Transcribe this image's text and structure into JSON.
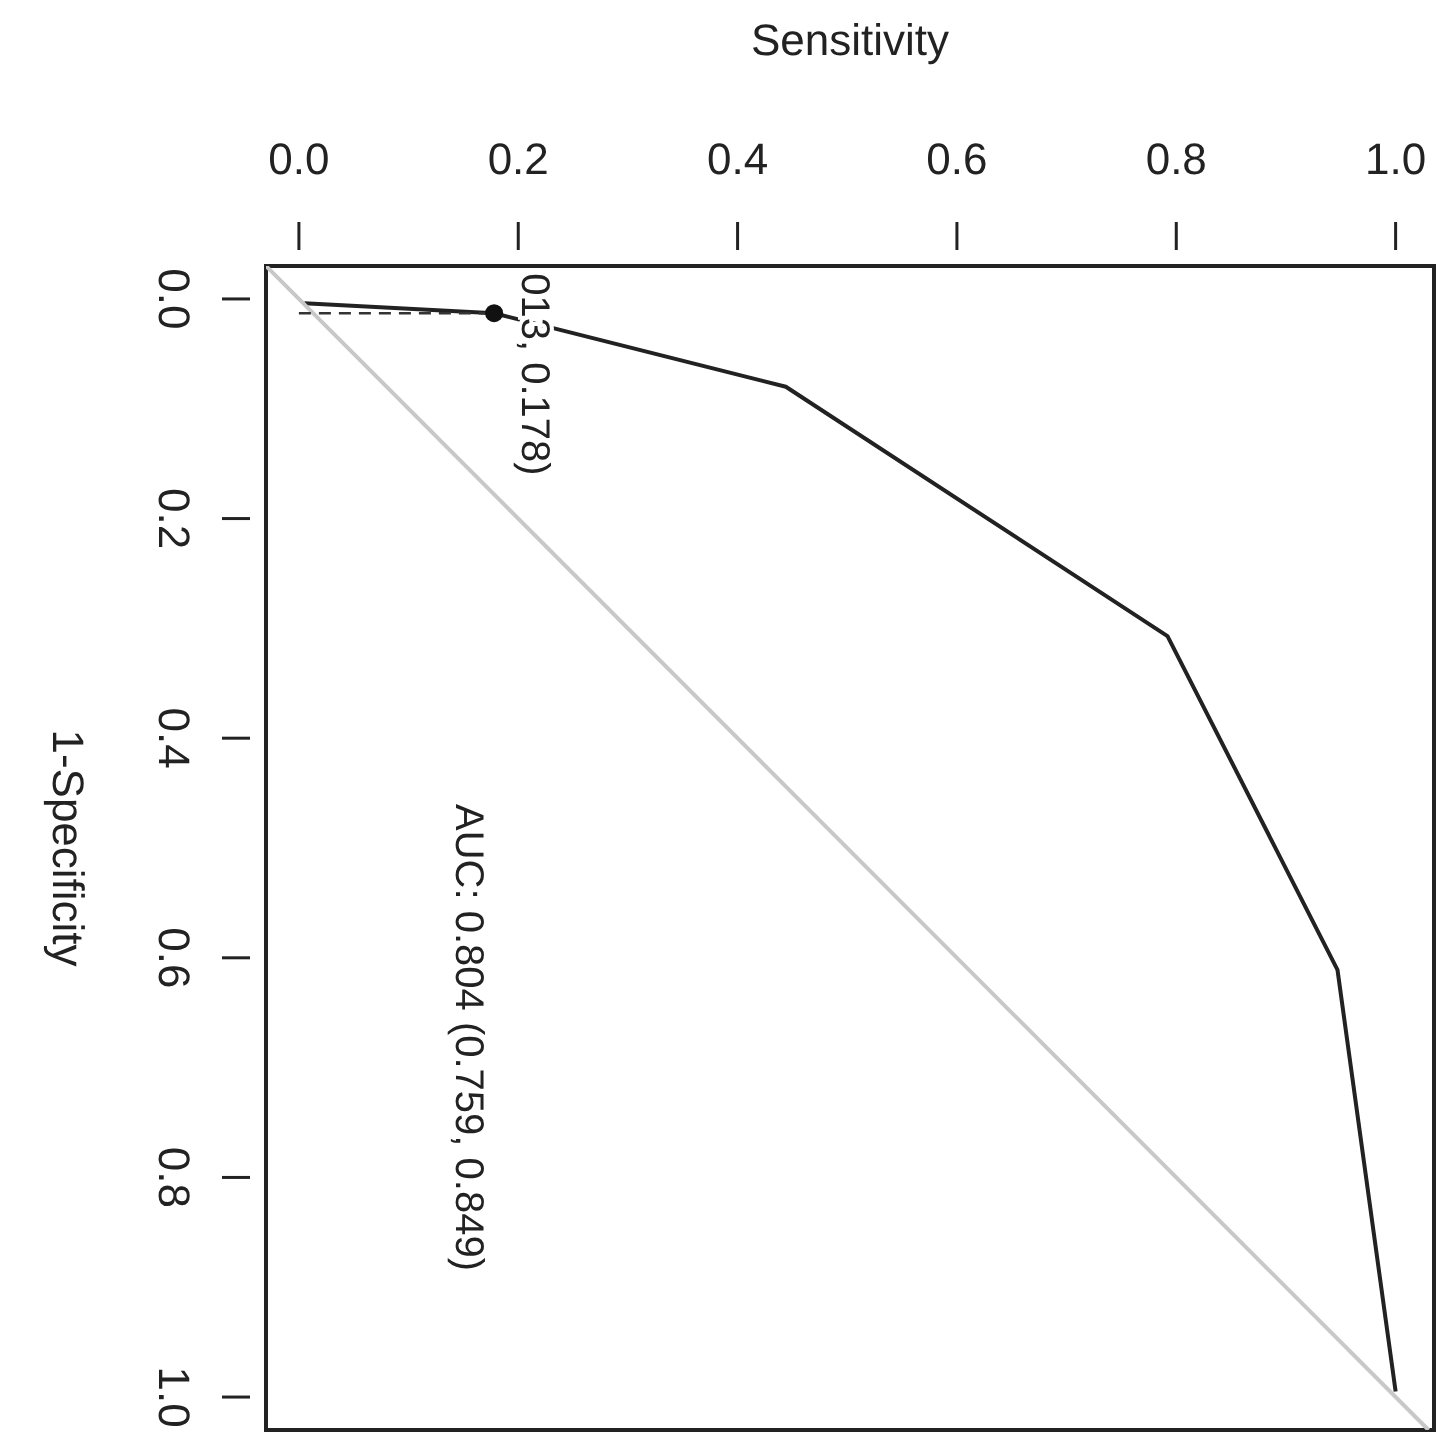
{
  "chart_data": {
    "type": "line",
    "xlabel": "Sensitivity",
    "ylabel": "1-Specificity",
    "xlim": [
      -0.03,
      1.035
    ],
    "ylim": [
      1.03,
      -0.03
    ],
    "xticks": [
      {
        "value": 0,
        "label": "0.0"
      },
      0.2,
      0.4,
      0.6,
      0.8,
      {
        "value": 1,
        "label": "1.0"
      }
    ],
    "yticks": [
      {
        "value": 0,
        "label": "0.0"
      },
      0.2,
      0.4,
      0.6,
      0.8,
      {
        "value": 1,
        "label": "1.0"
      }
    ],
    "series": [
      {
        "color": "#222222",
        "x": [
          0.005,
          0.178,
          0.444,
          0.792,
          0.947,
          1.0
        ],
        "values": [
          0.004,
          0.013,
          0.08,
          0.307,
          0.611,
          0.995
        ]
      },
      {
        "color": "#c8c8c8",
        "x": [
          -0.03,
          1.03
        ],
        "values": [
          -0.03,
          1.03
        ]
      },
      {
        "color": "#333333",
        "line_style": "dashed",
        "x": [
          0,
          0.178
        ],
        "values": [
          0.013,
          0.013
        ]
      },
      {
        "type": "scatter",
        "color": "#111111",
        "marker": "circle",
        "x": [
          0.178
        ],
        "values": [
          0.013
        ]
      }
    ],
    "annotations": [
      {
        "text": "013, 0.178)",
        "x": 0.178,
        "y": 0.013
      },
      "AUC: 0.804 (0.759, 0.849)"
    ]
  }
}
